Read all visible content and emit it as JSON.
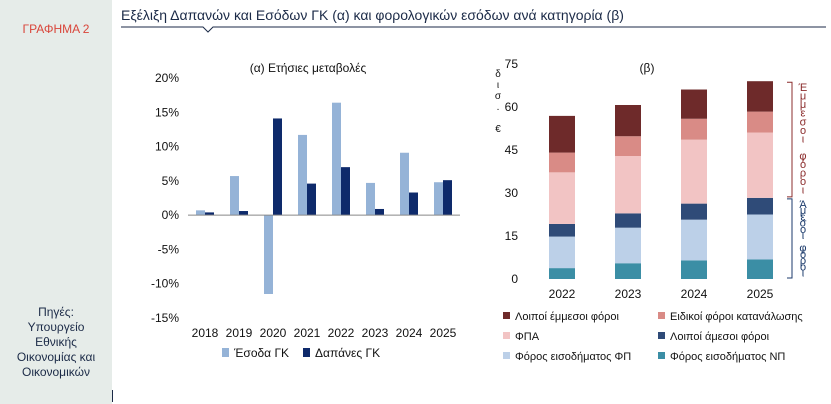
{
  "figure_label": "ΓΡΑΦΗΜΑ 2",
  "title": "Εξέλιξη Δαπανών και Εσόδων ΓΚ (α) και φορολογικών εσόδων ανά κατηγορία (β)",
  "sources": [
    "Πηγές:",
    "Υπουργείο",
    "Εθνικής",
    "Οικονομίας και",
    "Οικονομικών"
  ],
  "chart_data": [
    {
      "type": "bar",
      "title": "(α) Ετήσιες μεταβολές",
      "categories": [
        "2018",
        "2019",
        "2020",
        "2021",
        "2022",
        "2023",
        "2024",
        "2025"
      ],
      "ylim": [
        -15,
        20
      ],
      "yticks": [
        -15,
        -10,
        -5,
        0,
        5,
        10,
        15,
        20
      ],
      "ytick_labels": [
        "-15%",
        "-10%",
        "-5%",
        "0%",
        "5%",
        "10%",
        "15%",
        "20%"
      ],
      "series": [
        {
          "name": "Έσοδα ΓΚ",
          "color": "#95b3d7",
          "values": [
            0.7,
            5.7,
            -11.5,
            11.7,
            16.4,
            4.7,
            9.1,
            4.8
          ]
        },
        {
          "name": "Δαπάνες ΓΚ",
          "color": "#0e2a6b",
          "values": [
            0.4,
            0.6,
            14.1,
            4.6,
            7.0,
            0.9,
            3.3,
            5.1
          ]
        }
      ]
    },
    {
      "type": "bar",
      "stacked": true,
      "title": "(β)",
      "ylabel": "δισ. €",
      "categories": [
        "2022",
        "2023",
        "2024",
        "2025"
      ],
      "ylim": [
        0,
        75
      ],
      "yticks": [
        0,
        15,
        30,
        45,
        60,
        75
      ],
      "series": [
        {
          "name": "Φόρος εισοδήματος ΝΠ",
          "color": "#3b8ea5",
          "values": [
            3.8,
            5.5,
            6.5,
            6.8
          ]
        },
        {
          "name": "Φόρος εισοδήματος ΦΠ",
          "color": "#bcd0e8",
          "values": [
            11.0,
            12.4,
            14.2,
            15.7
          ]
        },
        {
          "name": "Λοιποί άμεσοι φόροι",
          "color": "#2f4b78",
          "values": [
            4.4,
            5.0,
            5.6,
            5.8
          ]
        },
        {
          "name": "ΦΠΑ",
          "color": "#f2c4c4",
          "values": [
            18.0,
            20.0,
            22.3,
            22.8
          ]
        },
        {
          "name": "Ειδικοί φόροι κατανάλωσης",
          "color": "#d98b86",
          "values": [
            6.9,
            6.9,
            7.3,
            7.3
          ]
        },
        {
          "name": "Λοιποί έμμεσοι φόροι",
          "color": "#6e2a2a",
          "values": [
            12.8,
            10.9,
            10.2,
            10.6
          ]
        }
      ],
      "bracket_labels": [
        {
          "text": "Έμμεσοι φόροι",
          "color": "#8b2c2c"
        },
        {
          "text": "Άμεσοι φόροι",
          "color": "#1b3a6b"
        }
      ]
    }
  ]
}
